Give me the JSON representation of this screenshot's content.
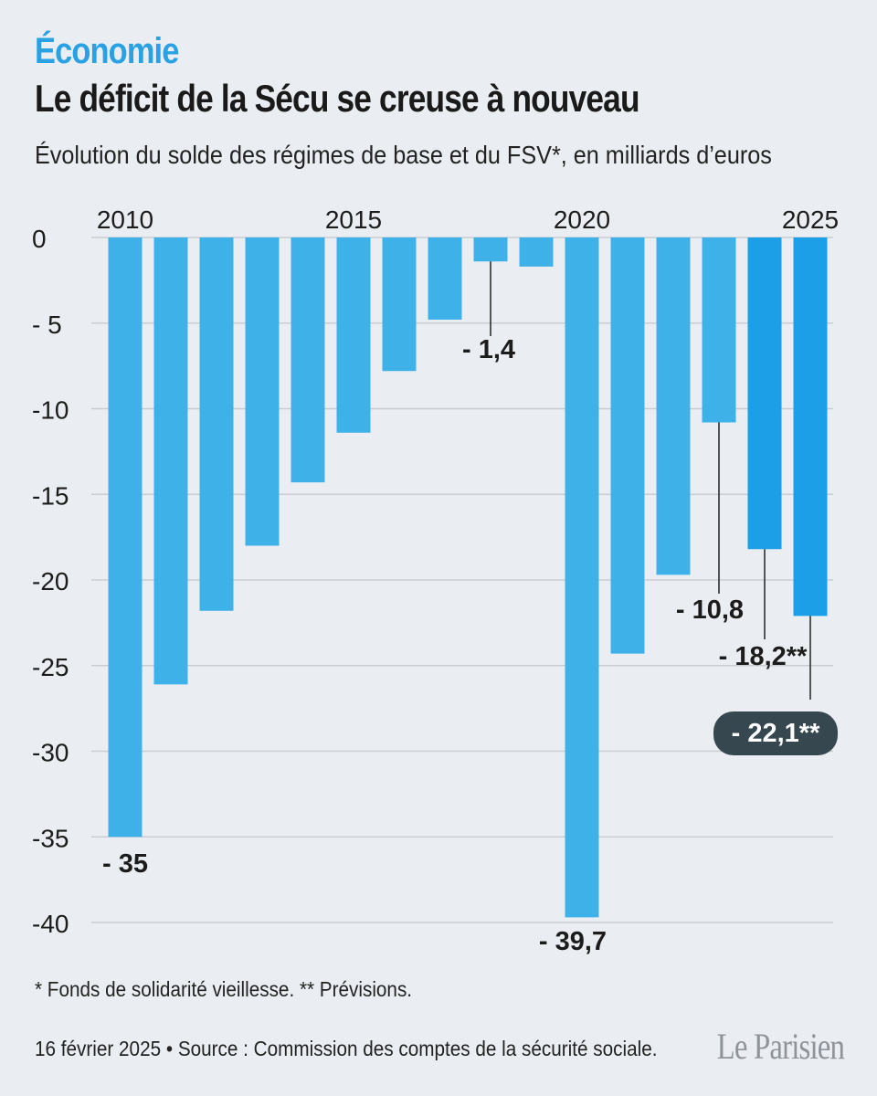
{
  "kicker": "Économie",
  "title": "Le déficit de la Sécu se creuse à nouveau",
  "subtitle": "Évolution du solde des régimes de base et du FSV*, en milliards d’euros",
  "footnote": "* Fonds de solidarité vieillesse.  ** Prévisions.",
  "source": "16 février 2025 • Source : Commission des comptes de la sécurité sociale.",
  "logo": "Le Parisien",
  "colors": {
    "bar": "#3db1e8",
    "bar_forecast": "#1c9fe6",
    "badge": "#37474f",
    "grid": "#c8cdd2",
    "text": "#1c1c1c"
  },
  "chart_data": {
    "type": "bar",
    "categories": [
      2010,
      2011,
      2012,
      2013,
      2014,
      2015,
      2016,
      2017,
      2018,
      2019,
      2020,
      2021,
      2022,
      2023,
      2024,
      2025
    ],
    "values": [
      -35,
      -26.1,
      -21.8,
      -18,
      -14.3,
      -11.4,
      -7.8,
      -4.8,
      -1.4,
      -1.7,
      -39.7,
      -24.3,
      -19.7,
      -10.8,
      -18.2,
      -22.1
    ],
    "forecast": [
      false,
      false,
      false,
      false,
      false,
      false,
      false,
      false,
      false,
      false,
      false,
      false,
      false,
      false,
      true,
      true
    ],
    "x_tick_labels": [
      "2010",
      "",
      "",
      "",
      "",
      "2015",
      "",
      "",
      "",
      "",
      "2020",
      "",
      "",
      "",
      "",
      "2025"
    ],
    "y_ticks": [
      0,
      -5,
      -10,
      -15,
      -20,
      -25,
      -30,
      -35,
      -40
    ],
    "y_tick_labels": [
      "0",
      "- 5",
      "-10",
      "-15",
      "-20",
      "-25",
      "-30",
      "-35",
      "-40"
    ],
    "ylim": [
      -40.5,
      0
    ],
    "grid": true,
    "annotations": [
      {
        "index": 0,
        "label": "- 35",
        "leader": false,
        "style": "plain"
      },
      {
        "index": 8,
        "label": "- 1,4",
        "leader": true,
        "style": "plain"
      },
      {
        "index": 10,
        "label": "- 39,7",
        "leader": false,
        "style": "plain"
      },
      {
        "index": 13,
        "label": "- 10,8",
        "leader": true,
        "style": "plain"
      },
      {
        "index": 14,
        "label": "- 18,2**",
        "leader": true,
        "style": "plain"
      },
      {
        "index": 15,
        "label": "- 22,1**",
        "leader": true,
        "style": "badge"
      }
    ]
  }
}
